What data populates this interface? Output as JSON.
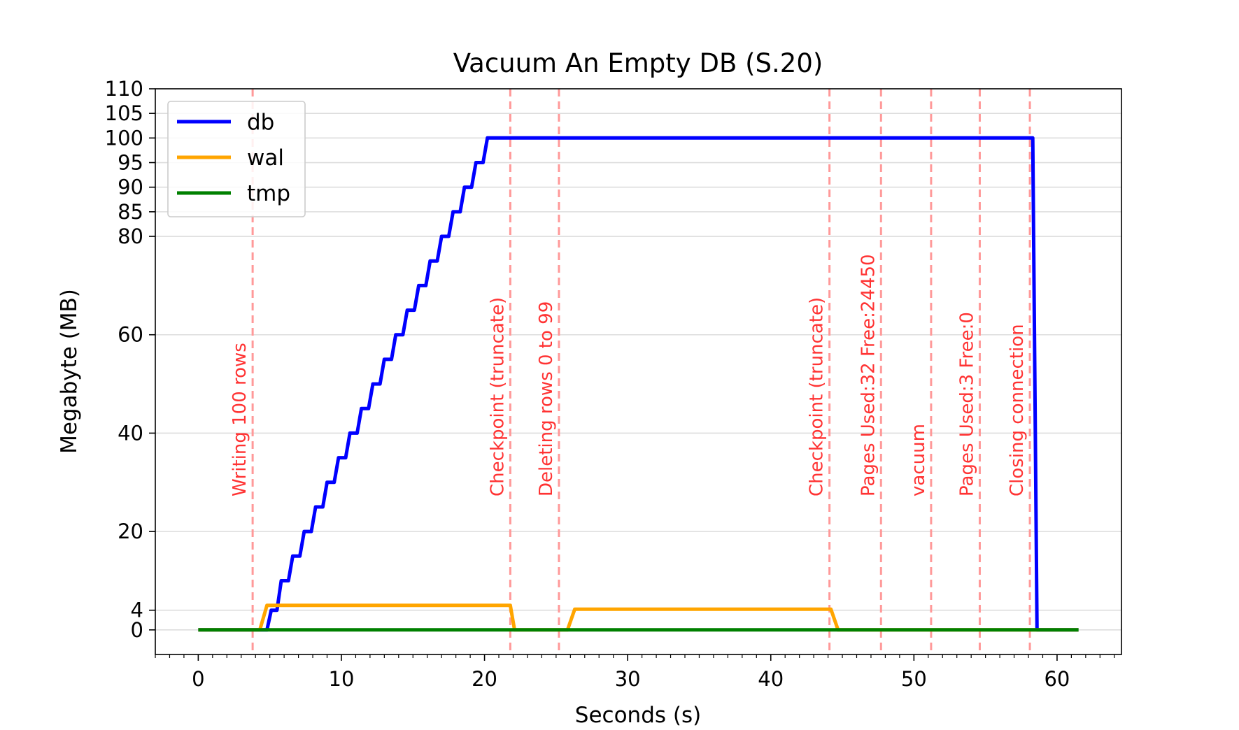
{
  "chart_data": {
    "type": "line",
    "title": "Vacuum An Empty DB (S.20)",
    "xlabel": "Seconds (s)",
    "ylabel": "Megabyte (MB)",
    "xlim": [
      -3,
      64.5
    ],
    "ylim": [
      -5,
      110
    ],
    "x_ticks": [
      0,
      10,
      20,
      30,
      40,
      50,
      60
    ],
    "y_ticks": [
      0,
      4,
      20,
      40,
      60,
      80,
      85,
      90,
      95,
      100,
      105,
      110
    ],
    "grid": "horizontal",
    "legend_position": "top-left",
    "series": [
      {
        "name": "db",
        "color": "#0000ff",
        "points": [
          [
            0,
            0
          ],
          [
            4.8,
            0
          ],
          [
            5.1,
            4
          ],
          [
            5.5,
            4
          ],
          [
            5.8,
            10
          ],
          [
            6.3,
            10
          ],
          [
            6.6,
            15
          ],
          [
            7.1,
            15
          ],
          [
            7.4,
            20
          ],
          [
            7.9,
            20
          ],
          [
            8.2,
            25
          ],
          [
            8.7,
            25
          ],
          [
            9.0,
            30
          ],
          [
            9.5,
            30
          ],
          [
            9.8,
            35
          ],
          [
            10.3,
            35
          ],
          [
            10.6,
            40
          ],
          [
            11.1,
            40
          ],
          [
            11.4,
            45
          ],
          [
            11.9,
            45
          ],
          [
            12.2,
            50
          ],
          [
            12.7,
            50
          ],
          [
            13.0,
            55
          ],
          [
            13.5,
            55
          ],
          [
            13.8,
            60
          ],
          [
            14.3,
            60
          ],
          [
            14.6,
            65
          ],
          [
            15.1,
            65
          ],
          [
            15.4,
            70
          ],
          [
            15.9,
            70
          ],
          [
            16.2,
            75
          ],
          [
            16.7,
            75
          ],
          [
            17.0,
            80
          ],
          [
            17.5,
            80
          ],
          [
            17.8,
            85
          ],
          [
            18.3,
            85
          ],
          [
            18.6,
            90
          ],
          [
            19.1,
            90
          ],
          [
            19.4,
            95
          ],
          [
            19.9,
            95
          ],
          [
            20.2,
            100
          ],
          [
            58.3,
            100
          ],
          [
            58.6,
            0
          ],
          [
            61.5,
            0
          ]
        ]
      },
      {
        "name": "wal",
        "color": "#ffa500",
        "points": [
          [
            0,
            0
          ],
          [
            4.3,
            0
          ],
          [
            4.8,
            5
          ],
          [
            21.8,
            5
          ],
          [
            22.1,
            0
          ],
          [
            25.8,
            0
          ],
          [
            26.3,
            4.2
          ],
          [
            44.2,
            4.2
          ],
          [
            44.7,
            0
          ],
          [
            61.5,
            0
          ]
        ]
      },
      {
        "name": "tmp",
        "color": "#008000",
        "points": [
          [
            0,
            0
          ],
          [
            61.5,
            0
          ]
        ]
      }
    ],
    "annotations": [
      {
        "x": 3.8,
        "label": "Writing 100 rows"
      },
      {
        "x": 21.8,
        "label": "Checkpoint (truncate)"
      },
      {
        "x": 25.2,
        "label": "Deleting rows 0 to 99"
      },
      {
        "x": 44.1,
        "label": "Checkpoint (truncate)"
      },
      {
        "x": 47.7,
        "label": "Pages Used:32 Free:24450"
      },
      {
        "x": 51.2,
        "label": "vacuum"
      },
      {
        "x": 54.6,
        "label": "Pages Used:3 Free:0"
      },
      {
        "x": 58.1,
        "label": "Closing connection"
      }
    ],
    "annotation_color": "#ff9999"
  }
}
